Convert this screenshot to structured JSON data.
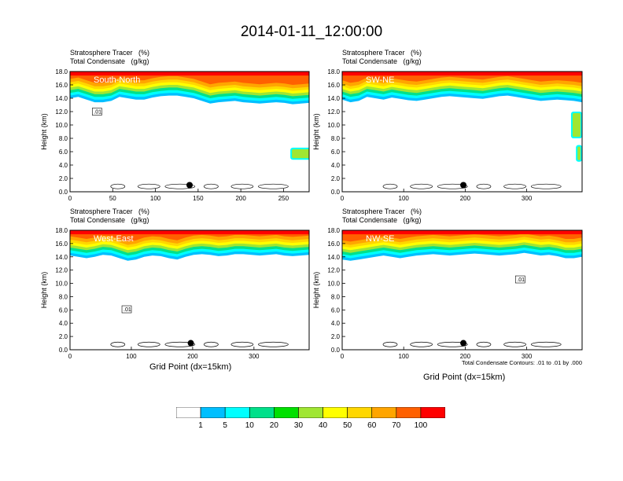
{
  "figure": {
    "title": "2014-01-11_12:00:00",
    "x_axis_title": "Grid Point (dx=15km)",
    "contour_note": "Total Condensate Contours: .01 to .01 by .000"
  },
  "chart_data": [
    {
      "type": "heatmap",
      "id": "south-north",
      "panel_label": "South-North",
      "left_string_1": "Stratosphere Tracer   (%)",
      "left_string_2": "Total Condensate   (g/kg)",
      "ylabel": "Height (km)",
      "xlabel": "",
      "xlim": [
        0,
        280
      ],
      "ylim": [
        0,
        18
      ],
      "x_ticks": [
        0,
        50,
        100,
        150,
        200,
        250
      ],
      "y_ticks": [
        "0.0",
        "2.0",
        "4.0",
        "6.0",
        "8.0",
        "10.0",
        "12.0",
        "14.0",
        "16.0",
        "18.0"
      ],
      "tropopause_km": [
        15.2,
        15.4,
        15.0,
        14.6,
        14.6,
        14.8,
        15.4,
        15.2,
        15.0,
        15.0,
        15.3,
        15.5,
        15.6,
        15.6,
        15.4,
        15.2,
        14.8,
        14.4,
        14.6,
        14.7,
        14.8,
        14.6,
        14.5,
        14.4,
        14.5,
        14.6,
        14.5,
        14.3,
        14.4,
        14.5
      ],
      "intrusions": [
        {
          "x": 258,
          "y": 4.8,
          "w": 25,
          "h": 1.8
        }
      ],
      "contour_label": ".01",
      "contour_label_pos": {
        "x": 27,
        "y": 11.7
      },
      "marker": {
        "x": 140,
        "y": 1.0
      }
    },
    {
      "type": "heatmap",
      "id": "sw-ne",
      "panel_label": "SW-NE",
      "left_string_1": "Stratosphere Tracer   (%)",
      "left_string_2": "Total Condensate   (g/kg)",
      "ylabel": "Height (km)",
      "xlabel": "",
      "xlim": [
        0,
        390
      ],
      "ylim": [
        0,
        18
      ],
      "x_ticks": [
        0,
        100,
        200,
        300
      ],
      "y_ticks": [
        "0.0",
        "2.0",
        "4.0",
        "6.0",
        "8.0",
        "10.0",
        "12.0",
        "14.0",
        "16.0",
        "18.0"
      ],
      "tropopause_km": [
        15.0,
        14.6,
        14.8,
        15.4,
        15.2,
        15.0,
        15.3,
        15.1,
        14.9,
        14.8,
        15.0,
        15.2,
        15.4,
        15.5,
        15.4,
        15.3,
        15.2,
        15.1,
        15.3,
        15.5,
        15.6,
        15.4,
        15.2,
        15.0,
        14.8,
        14.9,
        15.0,
        14.9,
        14.8,
        14.6
      ],
      "intrusions": [
        {
          "x": 372,
          "y": 8.0,
          "w": 18,
          "h": 4.0
        },
        {
          "x": 380,
          "y": 4.5,
          "w": 10,
          "h": 2.5
        }
      ],
      "contour_label": "",
      "contour_label_pos": null,
      "marker": {
        "x": 197,
        "y": 1.0
      }
    },
    {
      "type": "heatmap",
      "id": "west-east",
      "panel_label": "West-East",
      "left_string_1": "Stratosphere Tracer   (%)",
      "left_string_2": "Total Condensate   (g/kg)",
      "ylabel": "Height (km)",
      "xlabel": "",
      "xlim": [
        0,
        390
      ],
      "ylim": [
        0,
        18
      ],
      "x_ticks": [
        0,
        100,
        200,
        300
      ],
      "y_ticks": [
        "0.0",
        "2.0",
        "4.0",
        "6.0",
        "8.0",
        "10.0",
        "12.0",
        "14.0",
        "16.0",
        "18.0"
      ],
      "tropopause_km": [
        15.4,
        15.2,
        15.0,
        15.2,
        15.5,
        15.4,
        15.0,
        14.6,
        14.8,
        15.2,
        15.4,
        15.3,
        15.0,
        14.8,
        15.2,
        15.5,
        15.6,
        15.5,
        15.3,
        15.4,
        15.6,
        15.6,
        15.5,
        15.4,
        15.5,
        15.6,
        15.4,
        15.3,
        15.4,
        15.5
      ],
      "intrusions": [],
      "contour_label": ".01",
      "contour_label_pos": {
        "x": 86,
        "y": 5.8
      },
      "marker": {
        "x": 197,
        "y": 1.0
      }
    },
    {
      "type": "heatmap",
      "id": "nw-se",
      "panel_label": "NW-SE",
      "left_string_1": "Stratosphere Tracer   (%)",
      "left_string_2": "Total Condensate   (g/kg)",
      "ylabel": "Height (km)",
      "xlabel": "",
      "xlim": [
        0,
        390
      ],
      "ylim": [
        0,
        18
      ],
      "x_ticks": [
        0,
        100,
        200,
        300
      ],
      "y_ticks": [
        "0.0",
        "2.0",
        "4.0",
        "6.0",
        "8.0",
        "10.0",
        "12.0",
        "14.0",
        "16.0",
        "18.0"
      ],
      "tropopause_km": [
        14.8,
        14.6,
        14.8,
        15.0,
        15.2,
        15.4,
        15.2,
        15.0,
        15.2,
        15.4,
        15.5,
        15.6,
        15.5,
        15.4,
        15.5,
        15.6,
        15.7,
        15.6,
        15.5,
        15.4,
        15.5,
        15.6,
        15.8,
        15.6,
        15.4,
        15.5,
        15.3,
        15.0,
        15.0,
        15.2
      ],
      "intrusions": [],
      "contour_label": ".01",
      "contour_label_pos": {
        "x": 283,
        "y": 10.3
      },
      "marker": {
        "x": 197,
        "y": 1.0
      }
    }
  ],
  "colorbar": {
    "labels": [
      "1",
      "5",
      "10",
      "20",
      "30",
      "40",
      "50",
      "60",
      "70",
      "100"
    ],
    "colors": [
      "#ffffff",
      "#1e90ff",
      "#00bfff",
      "#00ffff",
      "#00e08a",
      "#00e000",
      "#a0e632",
      "#ffff00",
      "#ffd700",
      "#ffa500",
      "#ff6000",
      "#ff0000"
    ]
  }
}
